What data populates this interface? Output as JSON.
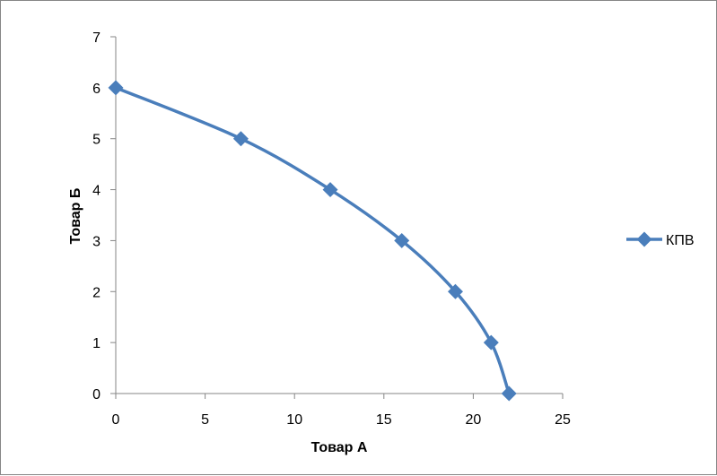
{
  "chart_data": {
    "type": "line",
    "title": "",
    "xlabel": "Товар А",
    "ylabel": "Товар Б",
    "xlim": [
      0,
      25
    ],
    "ylim": [
      0,
      7
    ],
    "xticks": [
      "0",
      "5",
      "10",
      "15",
      "20",
      "25"
    ],
    "yticks": [
      "0",
      "1",
      "2",
      "3",
      "4",
      "5",
      "6",
      "7"
    ],
    "grid": false,
    "legend_position": "right",
    "smooth": true,
    "marker": "diamond",
    "series": [
      {
        "name": "КПВ",
        "color": "#4a7ebb",
        "x": [
          0,
          7,
          12,
          16,
          19,
          21,
          22
        ],
        "y": [
          6,
          5,
          4,
          3,
          2,
          1,
          0
        ]
      }
    ]
  }
}
